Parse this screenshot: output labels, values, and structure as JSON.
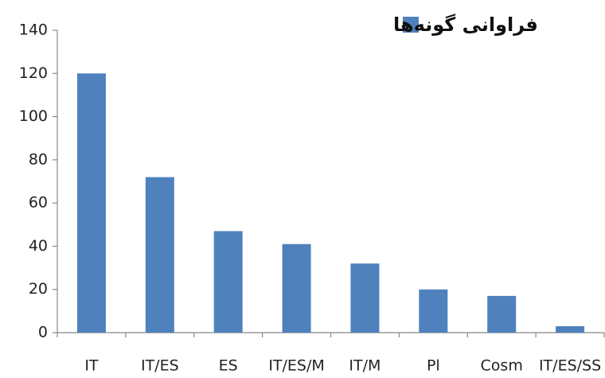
{
  "chart_data": {
    "type": "bar",
    "categories": [
      "IT",
      "IT/ES",
      "ES",
      "IT/ES/M",
      "IT/M",
      "Pl",
      "Cosm",
      "IT/ES/SS"
    ],
    "series": [
      {
        "name": "فراوانی گونه‌ها",
        "color": "#4f81bd",
        "values": [
          120,
          72,
          47,
          41,
          32,
          20,
          17,
          3
        ]
      }
    ],
    "ylim": [
      0,
      140
    ],
    "yticks": [
      0,
      20,
      40,
      60,
      80,
      100,
      120,
      140
    ],
    "grid": false,
    "legend": "top"
  }
}
